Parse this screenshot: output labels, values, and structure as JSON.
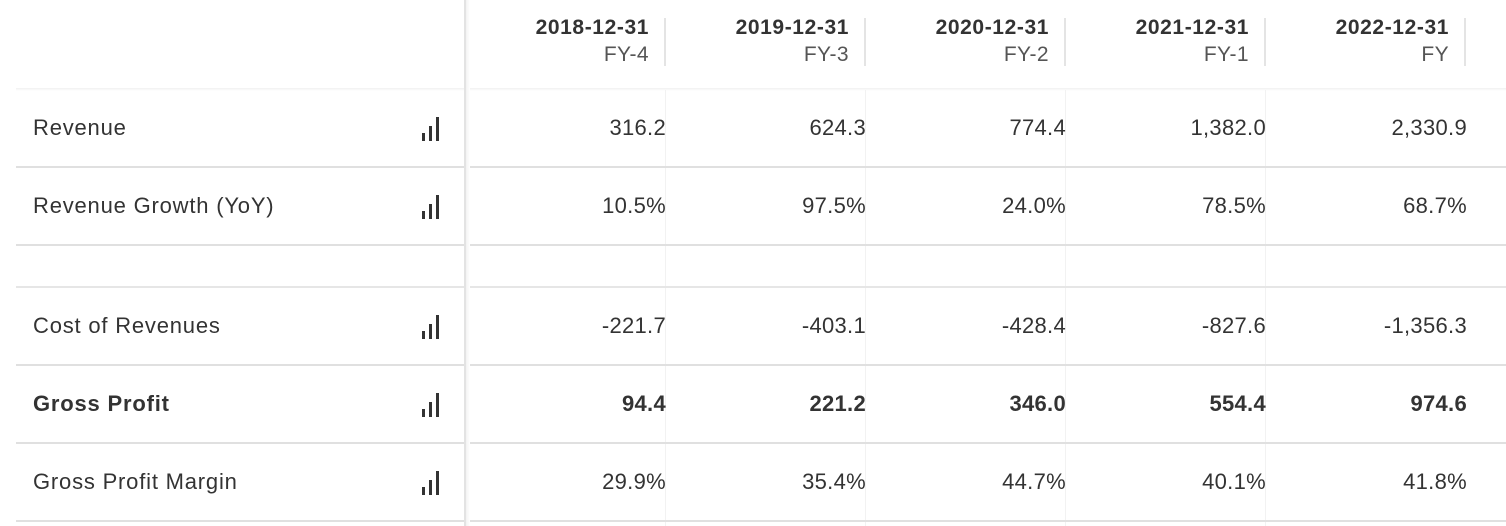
{
  "columns": [
    {
      "date": "2018-12-31",
      "fy": "FY-4"
    },
    {
      "date": "2019-12-31",
      "fy": "FY-3"
    },
    {
      "date": "2020-12-31",
      "fy": "FY-2"
    },
    {
      "date": "2021-12-31",
      "fy": "FY-1"
    },
    {
      "date": "2022-12-31",
      "fy": "FY"
    }
  ],
  "rows": [
    {
      "label": "Revenue",
      "bold": false,
      "values": [
        "316.2",
        "624.3",
        "774.4",
        "1,382.0",
        "2,330.9"
      ]
    },
    {
      "label": "Revenue Growth (YoY)",
      "bold": false,
      "values": [
        "10.5%",
        "97.5%",
        "24.0%",
        "78.5%",
        "68.7%"
      ]
    },
    {
      "label": "",
      "bold": false,
      "values": [
        "",
        "",
        "",
        "",
        ""
      ]
    },
    {
      "label": "Cost of Revenues",
      "bold": false,
      "values": [
        "-221.7",
        "-403.1",
        "-428.4",
        "-827.6",
        "-1,356.3"
      ]
    },
    {
      "label": "Gross Profit",
      "bold": true,
      "values": [
        "94.4",
        "221.2",
        "346.0",
        "554.4",
        "974.6"
      ]
    },
    {
      "label": "Gross Profit Margin",
      "bold": false,
      "values": [
        "29.9%",
        "35.4%",
        "44.7%",
        "40.1%",
        "41.8%"
      ]
    }
  ],
  "icons": {
    "row_chart": "bar-chart-icon"
  },
  "colors": {
    "text": "#333333",
    "border": "#e0e0e0"
  }
}
